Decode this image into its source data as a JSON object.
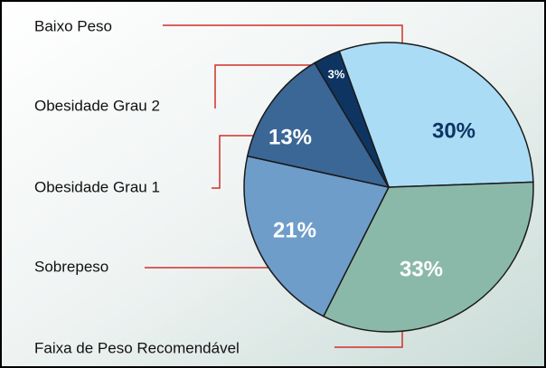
{
  "chart_data": {
    "type": "pie",
    "categories": [
      "Baixo Peso",
      "Faixa de Peso Recomendável",
      "Sobrepeso",
      "Obesidade Grau 1",
      "Obesidade Grau 2"
    ],
    "values": [
      30,
      33,
      21,
      13,
      3
    ],
    "value_labels": [
      "30%",
      "33%",
      "21%",
      "13%",
      "3%"
    ],
    "colors": [
      "#aadcf6",
      "#8bb9a9",
      "#6e9dca",
      "#3b6796",
      "#0e3562"
    ]
  }
}
